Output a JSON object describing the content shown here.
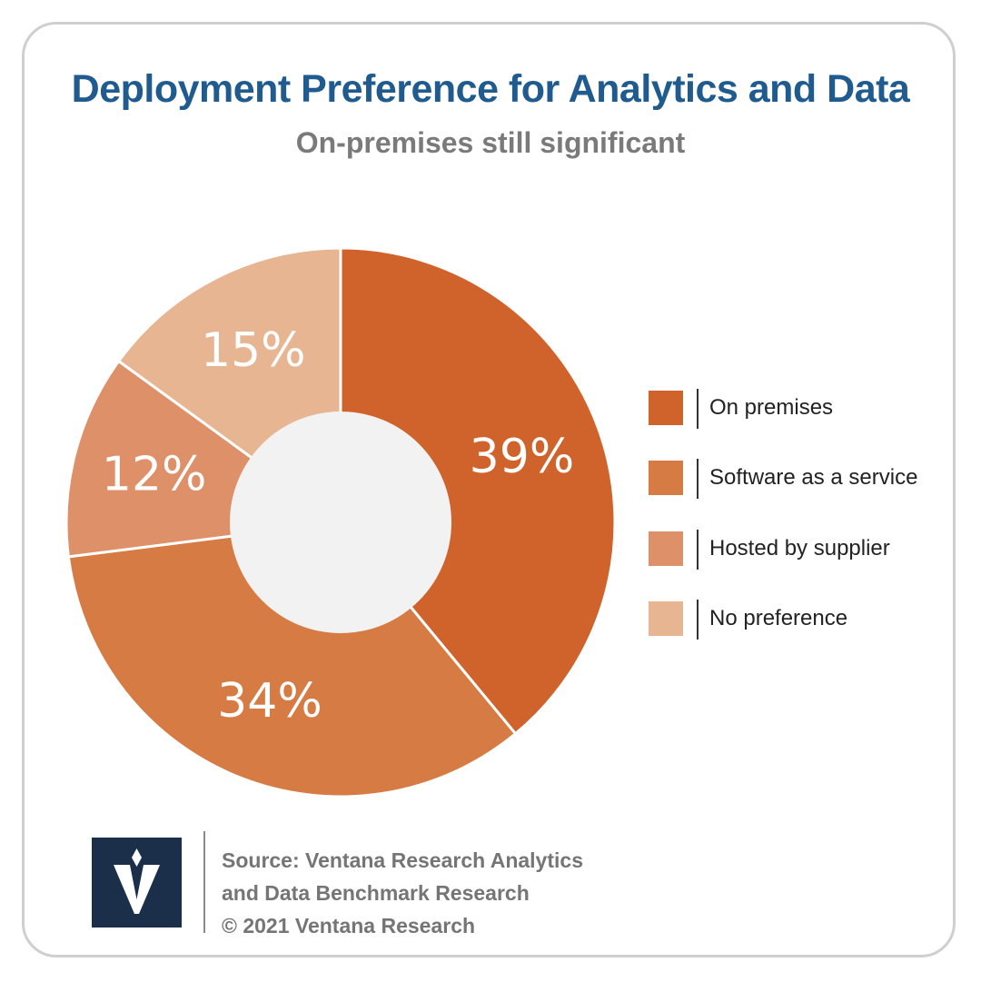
{
  "header": {
    "title": "Deployment Preference for Analytics and Data",
    "subtitle": "On-premises still significant"
  },
  "chart_data": {
    "type": "pie",
    "title": "Deployment Preference for Analytics and Data",
    "subtitle": "On-premises still significant",
    "donut": true,
    "legend_position": "right",
    "categories": [
      "On premises",
      "Software as a service",
      "Hosted by supplier",
      "No preference"
    ],
    "values": [
      39,
      34,
      12,
      15
    ],
    "labels": [
      "39%",
      "34%",
      "12%",
      "15%"
    ],
    "colors": [
      "#d0632b",
      "#d57b43",
      "#de9068",
      "#e8b592"
    ],
    "center_color": "#f2f2f2"
  },
  "footer": {
    "source_line1": "Source: Ventana Research Analytics",
    "source_line2": "and Data Benchmark Research",
    "copyright": "© 2021 Ventana Research",
    "logo_icon": "ventana-v-logo-icon",
    "logo_color": "#1b2f4a"
  }
}
